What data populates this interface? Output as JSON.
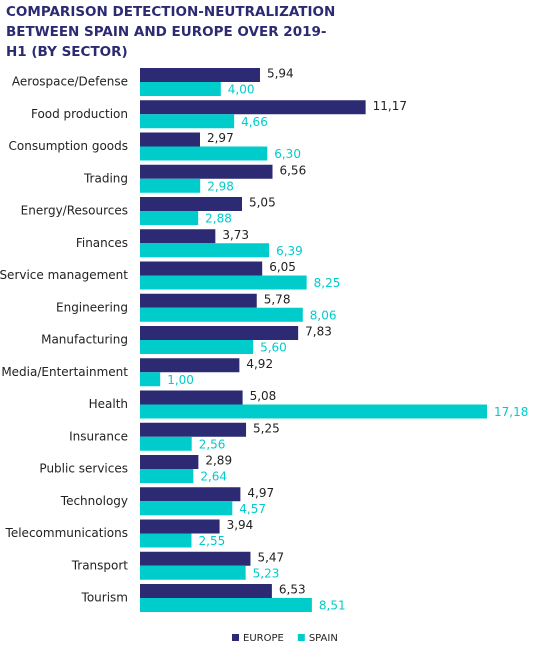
{
  "chart_data": {
    "type": "hbar",
    "title": "COMPARISON DETECTION-NEUTRALIZATION BETWEEN SPAIN AND EUROPE OVER 2019-H1 (BY SECTOR)",
    "categories": [
      "Aerospace/Defense",
      "Food production",
      "Consumption goods",
      "Trading",
      "Energy/Resources",
      "Finances",
      "Service management",
      "Engineering",
      "Manufacturing",
      "Media/Entertainment",
      "Health",
      "Insurance",
      "Public services",
      "Technology",
      "Telecommunications",
      "Transport",
      "Tourism"
    ],
    "series": [
      {
        "name": "EUROPE",
        "color": "#2b2a72",
        "values": [
          5.94,
          11.17,
          2.97,
          6.56,
          5.05,
          3.73,
          6.05,
          5.78,
          7.83,
          4.92,
          5.08,
          5.25,
          2.89,
          4.97,
          3.94,
          5.47,
          6.53
        ],
        "value_labels": [
          "5,94",
          "11,17",
          "2,97",
          "6,56",
          "5,05",
          "3,73",
          "6,05",
          "5,78",
          "7,83",
          "4,92",
          "5,08",
          "5,25",
          "2,89",
          "4,97",
          "3,94",
          "5,47",
          "6,53"
        ]
      },
      {
        "name": "SPAIN",
        "color": "#00cccc",
        "values": [
          4.0,
          4.66,
          6.3,
          2.98,
          2.88,
          6.39,
          8.25,
          8.06,
          5.6,
          1.0,
          17.18,
          2.56,
          2.64,
          4.57,
          2.55,
          5.23,
          8.51
        ],
        "value_labels": [
          "4,00",
          "4,66",
          "6,30",
          "2,98",
          "2,88",
          "6,39",
          "8,25",
          "8,06",
          "5,60",
          "1,00",
          "17,18",
          "2,56",
          "2,64",
          "4,57",
          "2,55",
          "5,23",
          "8,51"
        ]
      }
    ],
    "legend": "bottom"
  }
}
